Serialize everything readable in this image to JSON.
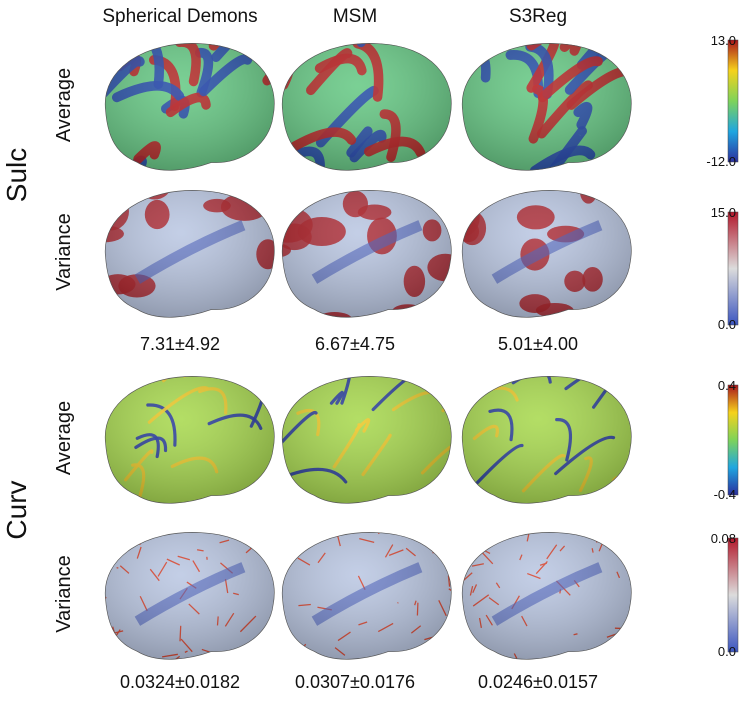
{
  "columns": [
    "Spherical Demons",
    "MSM",
    "S3Reg"
  ],
  "sections": [
    {
      "label": "Sulc",
      "rows": [
        {
          "label": "Average",
          "colorbar": {
            "max": "13.0",
            "min": "-12.0"
          }
        },
        {
          "label": "Variance",
          "colorbar": {
            "max": "15.0",
            "min": "0.0"
          }
        }
      ],
      "stats": [
        "7.31±4.92",
        "6.67±4.75",
        "5.01±4.00"
      ]
    },
    {
      "label": "Curv",
      "rows": [
        {
          "label": "Average",
          "colorbar": {
            "max": "0.4",
            "min": "-0.4"
          }
        },
        {
          "label": "Variance",
          "colorbar": {
            "max": "0.08",
            "min": "0.0"
          }
        }
      ],
      "stats": [
        "0.0324±0.0182",
        "0.0307±0.0176",
        "0.0246±0.0157"
      ]
    }
  ]
}
